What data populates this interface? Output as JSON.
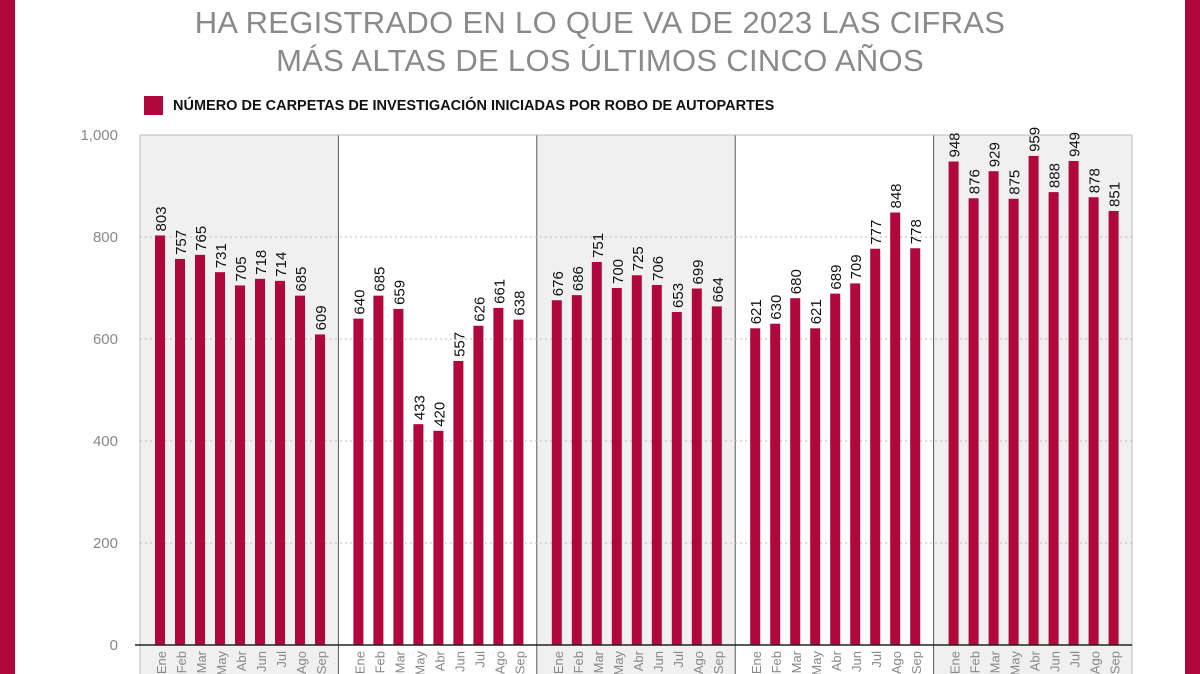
{
  "colors": {
    "bar": "#b0073d",
    "frame": "#b0073d",
    "panel_shade": "#f1f0f0",
    "grid": "#bbbbbb",
    "text": "#888888"
  },
  "title_lines": [
    "HA REGISTRADO EN LO QUE VA DE 2023 LAS CIFRAS",
    "MÁS ALTAS DE LOS ÚLTIMOS CINCO AÑOS"
  ],
  "chart_data": {
    "type": "bar",
    "legend": "NÚMERO DE CARPETAS DE INVESTIGACIÓN INICIADAS POR ROBO DE AUTOPARTES",
    "legend_position": "top-left",
    "ylim": [
      0,
      1000
    ],
    "yticks": [
      "0",
      "200",
      "400",
      "600",
      "800",
      "1,000"
    ],
    "ytick_values": [
      0,
      200,
      400,
      600,
      800,
      1000
    ],
    "grid": true,
    "categories": [
      "Ene",
      "Feb",
      "Mar",
      "May",
      "Abr",
      "Jun",
      "Jul",
      "Ago",
      "Sep"
    ],
    "groups": [
      {
        "values": [
          803,
          757,
          765,
          731,
          705,
          718,
          714,
          685,
          609
        ]
      },
      {
        "values": [
          640,
          685,
          659,
          433,
          420,
          557,
          626,
          661,
          638
        ]
      },
      {
        "values": [
          676,
          686,
          751,
          700,
          725,
          706,
          653,
          699,
          664
        ]
      },
      {
        "values": [
          621,
          630,
          680,
          621,
          689,
          709,
          777,
          848,
          778
        ]
      },
      {
        "values": [
          948,
          876,
          929,
          875,
          959,
          888,
          949,
          878,
          851
        ]
      }
    ]
  }
}
